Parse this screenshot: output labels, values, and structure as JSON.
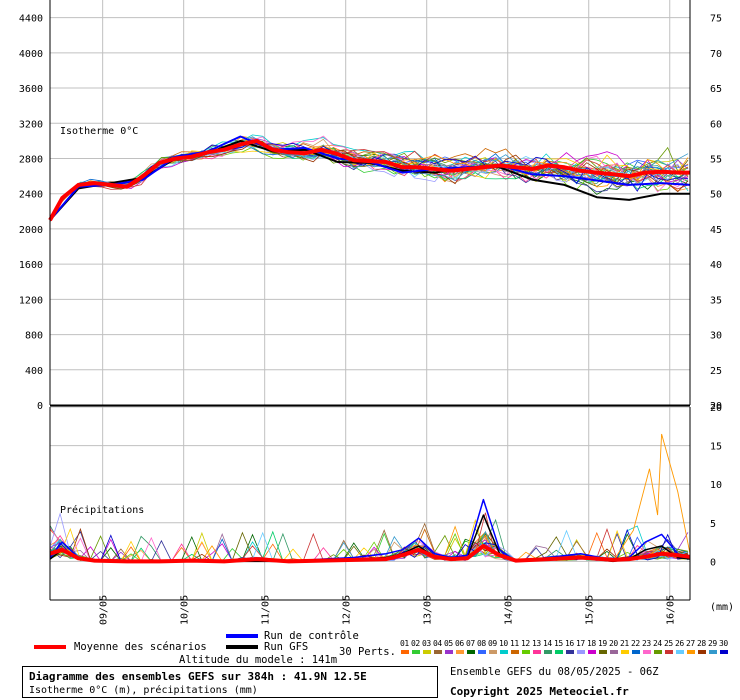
{
  "chart_data": [
    {
      "type": "line",
      "title": "",
      "ylabel_left": "",
      "ylabel_right": "",
      "annotation": "Isotherme 0°C",
      "left_ticks": [
        0,
        400,
        800,
        1200,
        1600,
        2000,
        2400,
        2800,
        3200,
        3600,
        4000,
        4400
      ],
      "right_ticks": [
        20,
        25,
        30,
        35,
        40,
        45,
        50,
        55,
        60,
        65,
        70,
        75
      ],
      "ylim_left": [
        0,
        4600
      ],
      "x_ticks": [
        "09/05",
        "10/05",
        "11/05",
        "12/05",
        "13/05",
        "14/05",
        "15/05",
        "16/05"
      ],
      "x_range_days": [
        8.35,
        16.25
      ],
      "grid": true,
      "mean_series": {
        "name": "Moyenne des scénarios",
        "x": [
          8.35,
          8.5,
          8.7,
          8.9,
          9.1,
          9.3,
          9.5,
          9.7,
          9.9,
          10.1,
          10.3,
          10.5,
          10.7,
          10.9,
          11.1,
          11.3,
          11.5,
          11.7,
          11.9,
          12.1,
          12.3,
          12.5,
          12.7,
          12.9,
          13.1,
          13.3,
          13.5,
          13.7,
          13.9,
          14.1,
          14.3,
          14.5,
          14.7,
          14.9,
          15.1,
          15.3,
          15.5,
          15.7,
          15.9,
          16.1,
          16.25
        ],
        "values": [
          2100,
          2350,
          2500,
          2520,
          2500,
          2480,
          2600,
          2750,
          2800,
          2820,
          2870,
          2900,
          2960,
          3000,
          2900,
          2870,
          2860,
          2900,
          2850,
          2780,
          2770,
          2760,
          2700,
          2700,
          2680,
          2660,
          2680,
          2700,
          2720,
          2700,
          2680,
          2720,
          2700,
          2660,
          2640,
          2620,
          2600,
          2640,
          2650,
          2640,
          2640
        ]
      },
      "control_series": {
        "name": "Run de contrôle",
        "x": [
          8.35,
          8.7,
          9.1,
          9.5,
          9.9,
          10.3,
          10.7,
          11.1,
          11.5,
          11.9,
          12.3,
          12.7,
          13.1,
          13.5,
          13.9,
          14.3,
          14.7,
          15.1,
          15.5,
          15.9,
          16.25
        ],
        "values": [
          2100,
          2480,
          2500,
          2560,
          2820,
          2880,
          3050,
          2900,
          2920,
          2800,
          2760,
          2640,
          2680,
          2700,
          2720,
          2620,
          2600,
          2550,
          2500,
          2520,
          2500
        ]
      },
      "gfs_series": {
        "name": "Run GFS",
        "x": [
          8.35,
          8.7,
          9.1,
          9.5,
          9.9,
          10.3,
          10.7,
          11.1,
          11.5,
          11.9,
          12.3,
          12.7,
          13.1,
          13.5,
          13.9,
          14.3,
          14.7,
          15.1,
          15.5,
          15.9,
          16.25
        ],
        "values": [
          2100,
          2460,
          2520,
          2580,
          2800,
          2860,
          3000,
          2880,
          2900,
          2760,
          2750,
          2660,
          2640,
          2700,
          2700,
          2560,
          2500,
          2360,
          2330,
          2400,
          2400
        ]
      }
    },
    {
      "type": "line",
      "title": "",
      "annotation": "Précipitations",
      "unit_label": "(mm)",
      "right_ticks": [
        0,
        5,
        10,
        15,
        20
      ],
      "ylim": [
        -5,
        20
      ],
      "x_ticks": [
        "09/05",
        "10/05",
        "11/05",
        "12/05",
        "13/05",
        "14/05",
        "15/05",
        "16/05"
      ],
      "grid": true,
      "mean_series": {
        "name": "Moyenne des scénarios",
        "x": [
          8.35,
          8.5,
          8.7,
          8.9,
          9.3,
          9.7,
          10.1,
          10.5,
          10.9,
          11.3,
          11.7,
          12.1,
          12.5,
          12.7,
          12.9,
          13.1,
          13.3,
          13.5,
          13.7,
          13.9,
          14.1,
          14.5,
          14.9,
          15.3,
          15.5,
          15.7,
          15.9,
          16.1,
          16.25
        ],
        "values": [
          1.0,
          1.5,
          0.4,
          0.1,
          0,
          0,
          0.1,
          0,
          0.3,
          0,
          0.1,
          0.2,
          0.3,
          0.8,
          1.5,
          0.6,
          0.3,
          0.4,
          2.0,
          0.8,
          0.1,
          0.3,
          0.5,
          0.2,
          0.3,
          0.6,
          1.0,
          0.8,
          0.6
        ]
      },
      "control_series": {
        "name": "Run de contrôle",
        "x": [
          8.35,
          8.5,
          8.7,
          8.9,
          9.3,
          9.7,
          10.1,
          10.5,
          10.9,
          11.3,
          11.7,
          12.1,
          12.5,
          12.7,
          12.9,
          13.1,
          13.3,
          13.5,
          13.7,
          13.9,
          14.1,
          14.5,
          14.9,
          15.3,
          15.5,
          15.7,
          15.9,
          16.1,
          16.25
        ],
        "values": [
          0.5,
          2.5,
          0.5,
          0,
          0,
          0,
          0,
          0,
          0.2,
          0,
          0.3,
          0.5,
          1.0,
          1.5,
          3.0,
          1.0,
          0.5,
          0.8,
          8.0,
          1.5,
          0,
          0.5,
          1.0,
          0.2,
          0.5,
          2.5,
          3.5,
          1.0,
          0.5
        ]
      },
      "gfs_series": {
        "name": "Run GFS",
        "x": [
          8.35,
          8.5,
          8.7,
          8.9,
          9.3,
          9.7,
          10.1,
          10.5,
          10.9,
          11.3,
          11.7,
          12.1,
          12.5,
          12.7,
          12.9,
          13.1,
          13.3,
          13.5,
          13.7,
          13.9,
          14.1,
          14.5,
          14.9,
          15.3,
          15.5,
          15.7,
          15.9,
          16.1,
          16.25
        ],
        "values": [
          0.3,
          1.5,
          0.3,
          0,
          0,
          0,
          0,
          0,
          0,
          0,
          0,
          0.2,
          0.5,
          1.0,
          2.0,
          0.5,
          0.2,
          0.5,
          6.0,
          1.0,
          0,
          0.3,
          0.5,
          0,
          0.3,
          1.5,
          2.0,
          0.5,
          0.3
        ]
      },
      "notable_member_peak": {
        "x": 15.9,
        "value": 16.5
      }
    }
  ],
  "colors": {
    "mean": "#ff0000",
    "control": "#0000ff",
    "gfs": "#000000",
    "grid": "#c0c0c0",
    "members": [
      "#ff6600",
      "#33cc33",
      "#cccc00",
      "#996633",
      "#9933cc",
      "#ff9933",
      "#006600",
      "#3366ff",
      "#cc9966",
      "#00cccc",
      "#cc6600",
      "#66cc00",
      "#ff3399",
      "#339966",
      "#00cc66",
      "#333399",
      "#9999ff",
      "#cc00cc",
      "#666600",
      "#996699",
      "#ffcc00",
      "#0066cc",
      "#ff66cc",
      "#669900",
      "#cc3333",
      "#66ccff",
      "#ff9900",
      "#993300",
      "#3399cc",
      "#0000cc"
    ]
  },
  "legend": {
    "mean_label": "Moyenne des scénarios",
    "control_label": "Run de contrôle",
    "gfs_label": "Run GFS",
    "perts_label": "30 Perts.",
    "pert_numbers": [
      "01",
      "02",
      "03",
      "04",
      "05",
      "06",
      "07",
      "08",
      "09",
      "10",
      "11",
      "12",
      "13",
      "14",
      "15",
      "16",
      "17",
      "18",
      "19",
      "20",
      "21",
      "22",
      "23",
      "24",
      "25",
      "26",
      "27",
      "28",
      "29",
      "30"
    ]
  },
  "info": {
    "altitude": "Altitude du modele : 141m",
    "footer_title": "Diagramme des ensembles GEFS sur 384h : 41.9N 12.5E",
    "footer_subtitle": "Isotherme 0°C (m), précipitations (mm)",
    "run_info": "Ensemble GEFS du 08/05/2025 - 06Z",
    "copyright": "Copyright 2025 Meteociel.fr"
  }
}
